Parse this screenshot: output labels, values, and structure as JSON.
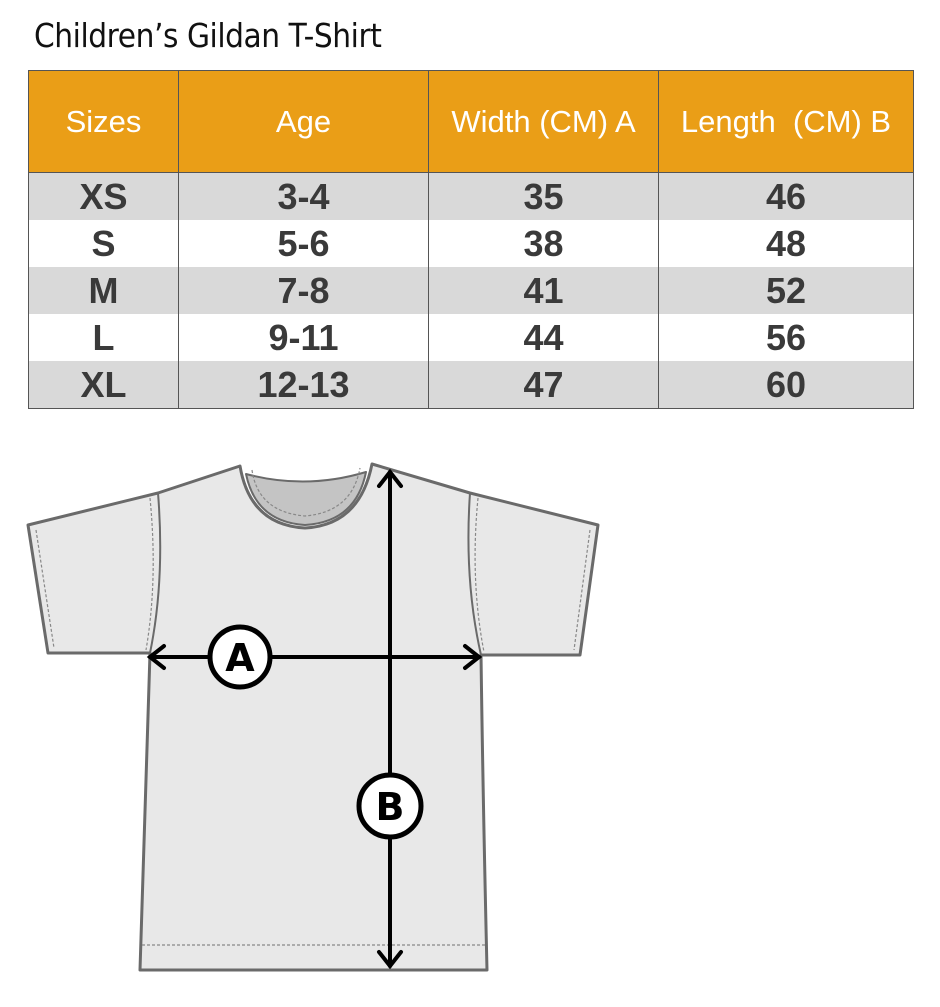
{
  "title": "Children’s Gildan T-Shirt",
  "table": {
    "headers": [
      "Sizes",
      "Age",
      "Width (CM) A",
      "Length  (CM) B"
    ],
    "rows": [
      [
        "XS",
        "3-4",
        "35",
        "46"
      ],
      [
        "S",
        "5-6",
        "38",
        "48"
      ],
      [
        "M",
        "7-8",
        "41",
        "52"
      ],
      [
        "L",
        "9-11",
        "44",
        "56"
      ],
      [
        "XL",
        "12-13",
        "47",
        "60"
      ]
    ]
  },
  "diagram": {
    "label_a": "A",
    "label_b": "B"
  },
  "colors": {
    "header": "#EA9E17",
    "row_alt": "#d9d9d9",
    "text": "#3a3a3a"
  }
}
